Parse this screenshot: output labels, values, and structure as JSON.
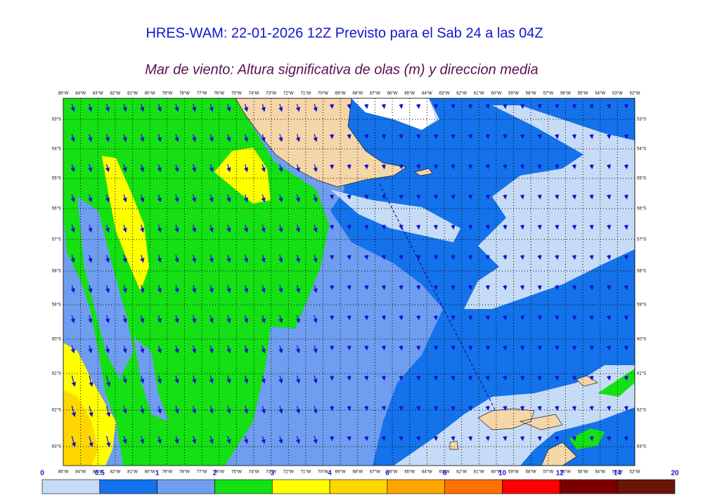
{
  "header": {
    "title": "HRES-WAM: 22-01-2026 12Z Previsto para el Sab 24 a las 04Z",
    "subtitle": "Mar de viento: Altura significativa de olas (m) y direccion media"
  },
  "map": {
    "longitude_labels": [
      "85°W",
      "84°W",
      "83°W",
      "82°W",
      "81°W",
      "80°W",
      "79°W",
      "78°W",
      "77°W",
      "76°W",
      "75°W",
      "74°W",
      "73°W",
      "72°W",
      "71°W",
      "70°W",
      "69°W",
      "68°W",
      "67°W",
      "66°W",
      "65°W",
      "64°W",
      "63°W",
      "62°W",
      "61°W",
      "60°W",
      "59°W",
      "58°W",
      "57°W",
      "56°W",
      "55°W",
      "54°W",
      "53°W",
      "52°W"
    ],
    "latitude_labels": [
      "53°S",
      "54°S",
      "55°S",
      "56°S",
      "57°S",
      "58°S",
      "59°S",
      "60°S",
      "61°S",
      "62°S",
      "63°S"
    ]
  },
  "legend": {
    "ticks": [
      0,
      0.5,
      1,
      2,
      3,
      4,
      6,
      8,
      10,
      12,
      14,
      20
    ],
    "colors": [
      "#c6dcf6",
      "#1472ea",
      "#6f9ef0",
      "#14e014",
      "#ffff00",
      "#ffd700",
      "#ffa500",
      "#ff7000",
      "#ff0000",
      "#7d0000",
      "#6b140a",
      "#3c3c3c"
    ]
  }
}
